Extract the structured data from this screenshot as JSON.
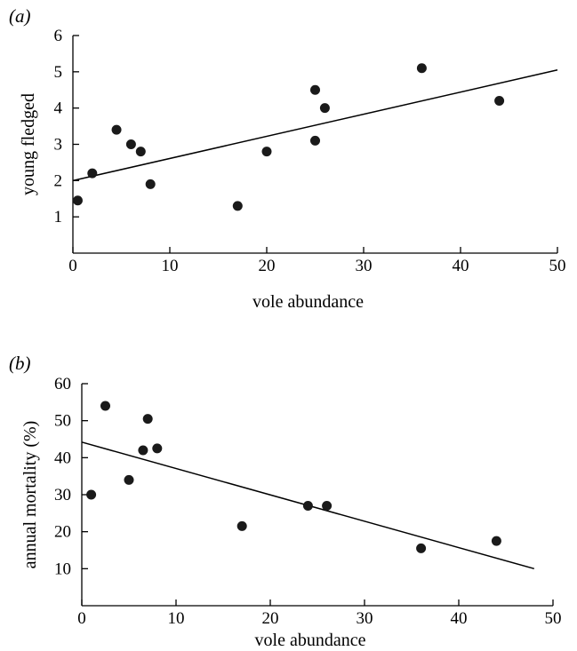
{
  "chart_data": [
    {
      "type": "scatter",
      "panel_label": "(a)",
      "xlabel": "vole abundance",
      "ylabel": "young fledged",
      "xlim": [
        0,
        50
      ],
      "ylim": [
        0,
        6
      ],
      "xticks": [
        0,
        10,
        20,
        30,
        40,
        50
      ],
      "yticks": [
        1,
        2,
        3,
        4,
        5,
        6
      ],
      "points": [
        {
          "x": 0.5,
          "y": 1.45
        },
        {
          "x": 2,
          "y": 2.2
        },
        {
          "x": 4.5,
          "y": 3.4
        },
        {
          "x": 6,
          "y": 3.0
        },
        {
          "x": 7,
          "y": 2.8
        },
        {
          "x": 8,
          "y": 1.9
        },
        {
          "x": 17,
          "y": 1.3
        },
        {
          "x": 20,
          "y": 2.8
        },
        {
          "x": 25,
          "y": 4.5
        },
        {
          "x": 25,
          "y": 3.1
        },
        {
          "x": 26,
          "y": 4.0
        },
        {
          "x": 36,
          "y": 5.1
        },
        {
          "x": 44,
          "y": 4.2
        }
      ],
      "fit_line": {
        "x": [
          0,
          50
        ],
        "y": [
          2.0,
          5.05
        ]
      }
    },
    {
      "type": "scatter",
      "panel_label": "(b)",
      "xlabel": "vole abundance",
      "ylabel": "annual mortality (%)",
      "xlim": [
        0,
        50
      ],
      "ylim": [
        0,
        60
      ],
      "xticks": [
        0,
        10,
        20,
        30,
        40,
        50
      ],
      "yticks": [
        10,
        20,
        30,
        40,
        50,
        60
      ],
      "points": [
        {
          "x": 1,
          "y": 30
        },
        {
          "x": 2.5,
          "y": 54
        },
        {
          "x": 5,
          "y": 34
        },
        {
          "x": 6.5,
          "y": 42
        },
        {
          "x": 7,
          "y": 50.5
        },
        {
          "x": 8,
          "y": 42.5
        },
        {
          "x": 17,
          "y": 21.5
        },
        {
          "x": 24,
          "y": 27
        },
        {
          "x": 26,
          "y": 27
        },
        {
          "x": 36,
          "y": 15.5
        },
        {
          "x": 44,
          "y": 17.5
        }
      ],
      "fit_line": {
        "x": [
          0,
          48
        ],
        "y": [
          44.2,
          10
        ]
      }
    }
  ]
}
